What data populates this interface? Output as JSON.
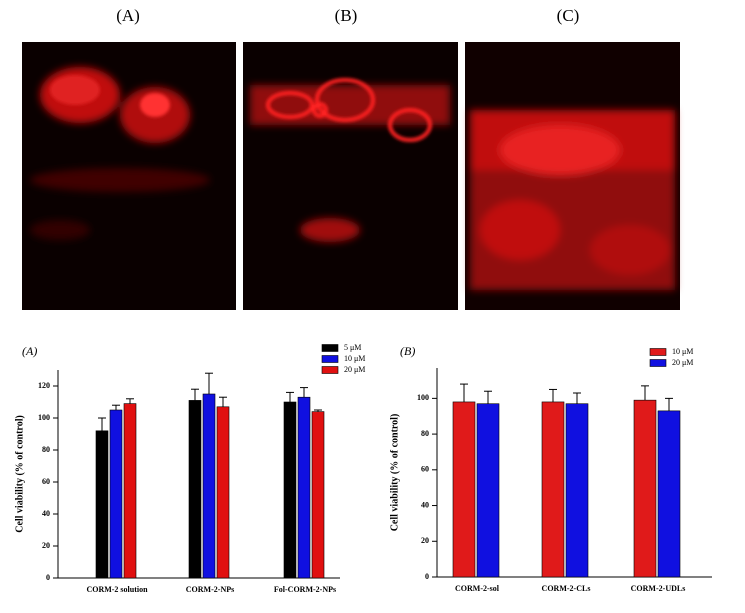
{
  "images": {
    "labels": [
      "(A)",
      "(B)",
      "(C)"
    ]
  },
  "chart_data": [
    {
      "type": "bar",
      "panel_label": "(A)",
      "y_label": "Cell viability (% of control)",
      "categories": [
        "CORM-2 solution",
        "CORM-2-NPs",
        "Fol-CORM-2-NPs"
      ],
      "series": [
        {
          "name": "5 μM",
          "color": "#000000",
          "values": [
            92,
            111,
            110
          ],
          "errors": [
            8,
            7,
            6
          ]
        },
        {
          "name": "10 μM",
          "color": "#1010e0",
          "values": [
            105,
            115,
            113
          ],
          "errors": [
            3,
            13,
            6
          ]
        },
        {
          "name": "20 μM",
          "color": "#e01010",
          "values": [
            109,
            107,
            104
          ],
          "errors": [
            3,
            6,
            1
          ]
        }
      ],
      "ylim": [
        0,
        130
      ],
      "yticks": [
        0,
        20,
        40,
        60,
        80,
        100,
        120
      ],
      "legend": "upper-right"
    },
    {
      "type": "bar",
      "panel_label": "(B)",
      "y_label": "Cell viability (% of control)",
      "categories": [
        "CORM-2-sol",
        "CORM-2-CLs",
        "CORM-2-UDLs"
      ],
      "series": [
        {
          "name": "10 μM",
          "color": "#e01a1a",
          "values": [
            98,
            98,
            99
          ],
          "errors": [
            10,
            7,
            8
          ]
        },
        {
          "name": "20 μM",
          "color": "#1010e0",
          "values": [
            97,
            97,
            93
          ],
          "errors": [
            7,
            6,
            7
          ]
        }
      ],
      "ylim": [
        0,
        117
      ],
      "yticks": [
        0,
        20,
        40,
        60,
        80,
        100
      ],
      "legend": "upper-right"
    }
  ]
}
